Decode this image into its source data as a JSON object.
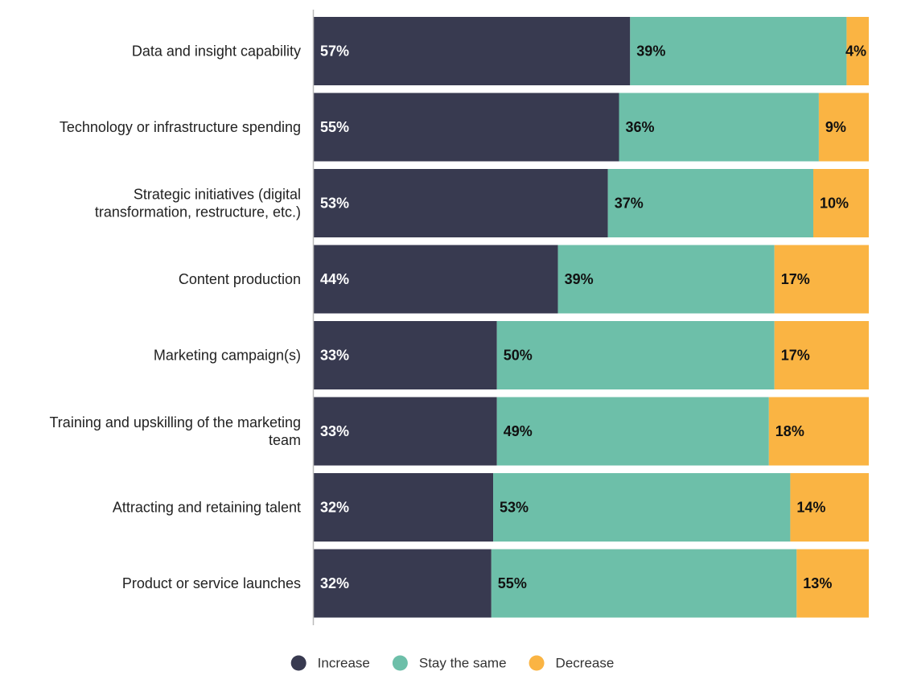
{
  "chart_data": {
    "type": "bar",
    "orientation": "horizontal",
    "stacked": true,
    "categories": [
      "Data and insight capability",
      "Technology or infrastructure spending",
      "Strategic initiatives (digital transformation, restructure, etc.)",
      "Content production",
      "Marketing campaign(s)",
      "Training and upskilling of the marketing team",
      "Attracting and retaining talent",
      "Product or service launches"
    ],
    "category_lines": [
      [
        "Data and insight capability"
      ],
      [
        "Technology or infrastructure spending"
      ],
      [
        "Strategic initiatives (digital",
        "transformation, restructure, etc.)"
      ],
      [
        "Content production"
      ],
      [
        "Marketing campaign(s)"
      ],
      [
        "Training and upskilling of the marketing",
        "team"
      ],
      [
        "Attracting and retaining talent"
      ],
      [
        "Product or service launches"
      ]
    ],
    "series": [
      {
        "name": "Increase",
        "color": "#383a50",
        "label_color": "#ffffff",
        "values": [
          57,
          55,
          53,
          44,
          33,
          33,
          32,
          32
        ]
      },
      {
        "name": "Stay the same",
        "color": "#6dbfa9",
        "label_color": "#111111",
        "values": [
          39,
          36,
          37,
          39,
          50,
          49,
          53,
          55
        ]
      },
      {
        "name": "Decrease",
        "color": "#fab443",
        "label_color": "#111111",
        "values": [
          4,
          9,
          10,
          17,
          17,
          18,
          14,
          13
        ]
      }
    ],
    "value_suffix": "%",
    "xlim": [
      0,
      100
    ],
    "grid": false,
    "legend_position": "bottom",
    "title": "",
    "xlabel": "",
    "ylabel": ""
  }
}
